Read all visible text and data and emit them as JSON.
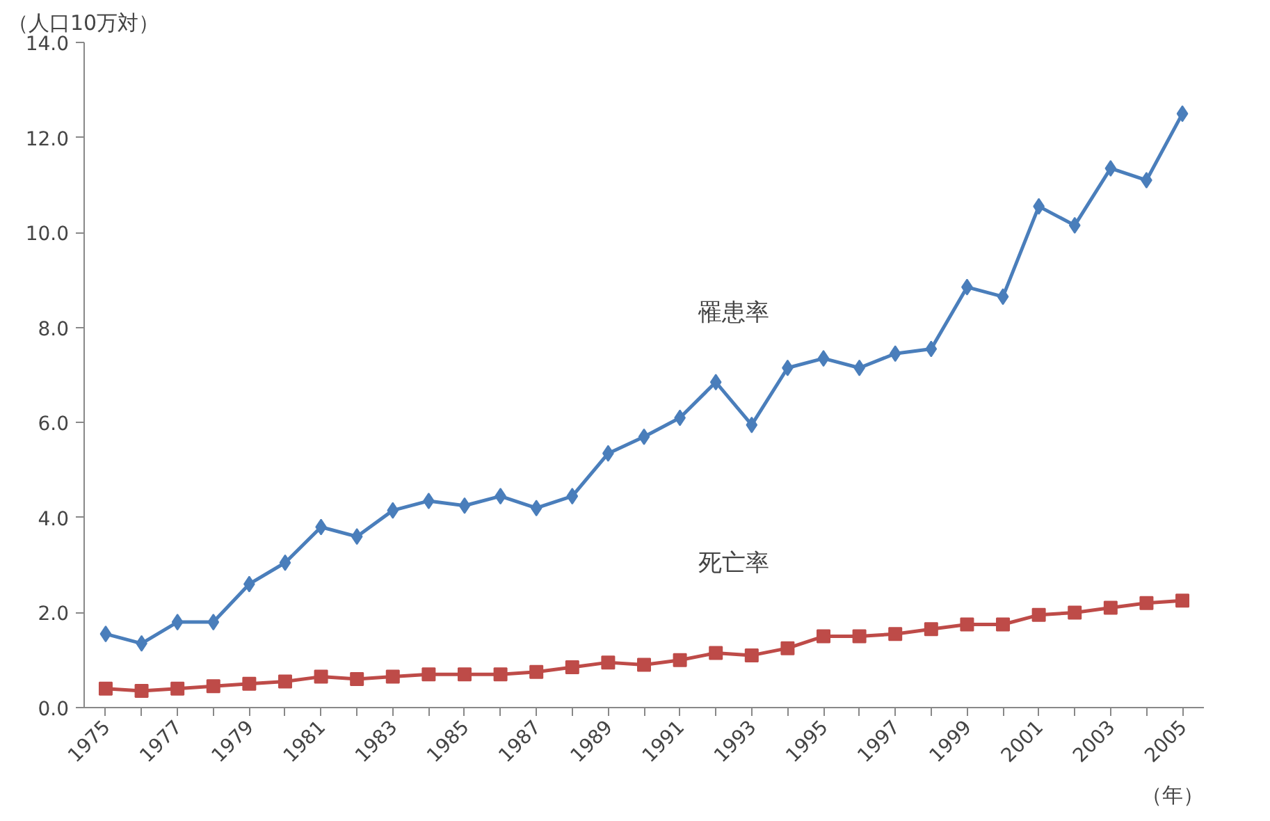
{
  "chart_data": {
    "type": "line",
    "ylabel": "（人口10万対）",
    "xlabel": "（年）",
    "categories": [
      "1975",
      null,
      "1977",
      null,
      "1979",
      null,
      "1981",
      null,
      "1983",
      null,
      "1985",
      null,
      "1987",
      null,
      "1989",
      null,
      "1991",
      null,
      "1993",
      null,
      "1995",
      null,
      "1997",
      null,
      "1999",
      null,
      "2001",
      null,
      "2003",
      null,
      "2005"
    ],
    "series": [
      {
        "name": "罹患率",
        "color": "#4a7ebb",
        "marker": "diamond",
        "values": [
          1.55,
          1.35,
          1.8,
          1.8,
          2.6,
          3.05,
          3.8,
          3.6,
          4.15,
          4.35,
          4.25,
          4.45,
          4.2,
          4.45,
          5.35,
          5.7,
          6.1,
          6.85,
          5.95,
          7.15,
          7.35,
          7.15,
          7.45,
          7.55,
          8.85,
          8.65,
          10.55,
          10.15,
          11.35,
          11.1,
          12.5
        ]
      },
      {
        "name": "死亡率",
        "color": "#be4b48",
        "marker": "square",
        "values": [
          0.4,
          0.35,
          0.4,
          0.45,
          0.5,
          0.55,
          0.65,
          0.6,
          0.65,
          0.7,
          0.7,
          0.7,
          0.75,
          0.85,
          0.95,
          0.9,
          1.0,
          1.15,
          1.1,
          1.25,
          1.5,
          1.5,
          1.55,
          1.65,
          1.75,
          1.75,
          1.95,
          2.0,
          2.1,
          2.2,
          2.25
        ]
      }
    ],
    "ylim": [
      0,
      14
    ],
    "yticks": [
      {
        "value": 0,
        "label": "0.0"
      },
      {
        "value": 2,
        "label": "2.0"
      },
      {
        "value": 4,
        "label": "4.0"
      },
      {
        "value": 6,
        "label": "6.0"
      },
      {
        "value": 8,
        "label": "8.0"
      },
      {
        "value": 10,
        "label": "10.0"
      },
      {
        "value": 12,
        "label": "12.0"
      },
      {
        "value": 14,
        "label": "14.0"
      }
    ],
    "grid": false
  }
}
